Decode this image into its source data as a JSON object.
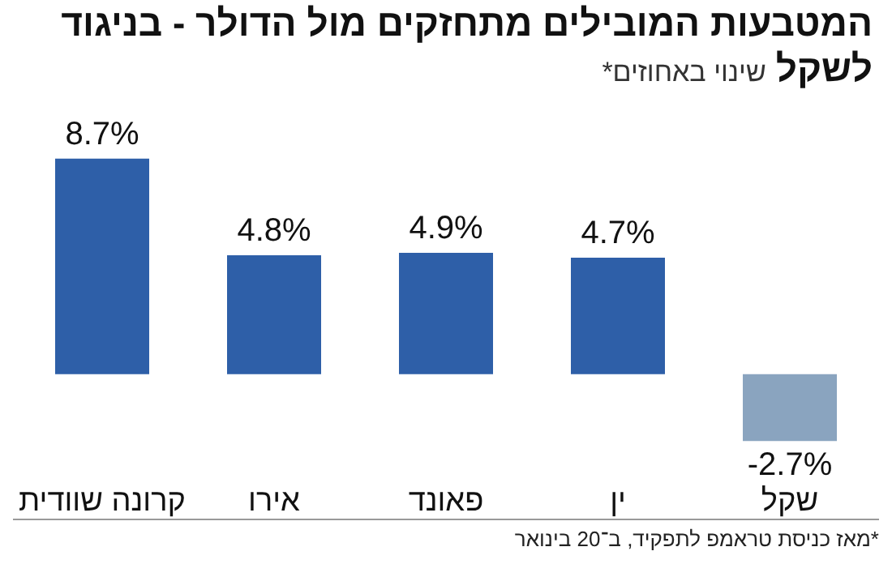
{
  "chart_data": {
    "type": "bar",
    "title": "המטבעות המובילים מתחזקים מול הדולר - בניגוד לשקל",
    "subtitle": "שינוי באחוזים*",
    "categories": [
      "קרונה שוודית",
      "אירו",
      "פאונד",
      "ין",
      "שקל"
    ],
    "values": [
      8.7,
      4.8,
      4.9,
      4.7,
      -2.7
    ],
    "colors": [
      "#2e5fa8",
      "#2e5fa8",
      "#2e5fa8",
      "#2e5fa8",
      "#8aa4bf"
    ],
    "value_labels": [
      "8.7%",
      "4.8%",
      "4.9%",
      "4.7%",
      "-2.7%"
    ],
    "annotations": [
      "*מאז כניסת טראמפ לתפקיד, ב־20 בינואר"
    ]
  }
}
